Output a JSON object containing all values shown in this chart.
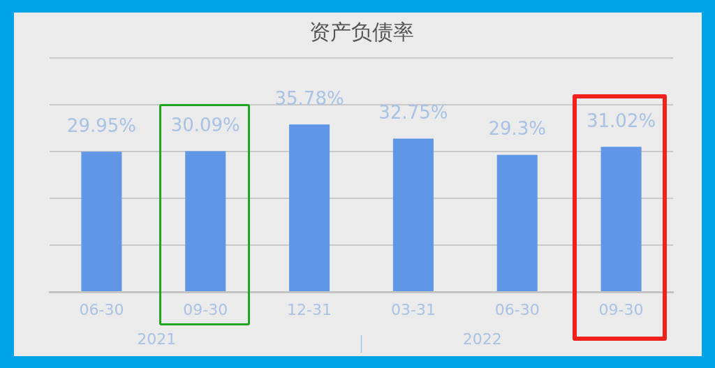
{
  "chart_data": {
    "type": "bar",
    "title": "资产负债率",
    "categories": [
      "06-30",
      "09-30",
      "12-31",
      "03-31",
      "06-30",
      "09-30"
    ],
    "values": [
      29.95,
      30.09,
      35.78,
      32.75,
      29.3,
      31.02
    ],
    "value_labels": [
      "29.95%",
      "30.09%",
      "35.78%",
      "32.75%",
      "29.3%",
      "31.02%"
    ],
    "color": "#5f97e6",
    "ylim": [
      0,
      50
    ],
    "yticks": [
      {
        "value": 0,
        "label": null
      },
      {
        "value": 10,
        "label": null
      },
      {
        "value": 20,
        "label": null
      },
      {
        "value": 30,
        "label": null
      },
      {
        "value": 40,
        "label": null
      },
      {
        "value": 50,
        "label": null
      }
    ],
    "grid": "y",
    "tick_labels": "x",
    "legend": false,
    "annotations": [
      "2021",
      "2022"
    ]
  }
}
